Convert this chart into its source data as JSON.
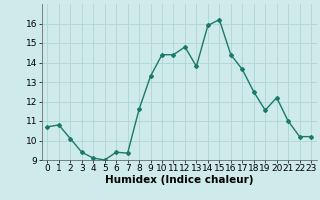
{
  "x": [
    0,
    1,
    2,
    3,
    4,
    5,
    6,
    7,
    8,
    9,
    10,
    11,
    12,
    13,
    14,
    15,
    16,
    17,
    18,
    19,
    20,
    21,
    22,
    23
  ],
  "y": [
    10.7,
    10.8,
    10.1,
    9.4,
    9.1,
    9.0,
    9.4,
    9.35,
    11.6,
    13.3,
    14.4,
    14.4,
    14.8,
    13.8,
    15.9,
    16.2,
    14.4,
    13.65,
    12.5,
    11.55,
    12.2,
    11.0,
    10.2,
    10.2
  ],
  "line_color": "#1a7a6a",
  "marker": "D",
  "marker_size": 2,
  "linewidth": 1.0,
  "xlabel": "Humidex (Indice chaleur)",
  "ylim": [
    9,
    17
  ],
  "xlim": [
    -0.5,
    23.5
  ],
  "yticks": [
    9,
    10,
    11,
    12,
    13,
    14,
    15,
    16
  ],
  "xticks": [
    0,
    1,
    2,
    3,
    4,
    5,
    6,
    7,
    8,
    9,
    10,
    11,
    12,
    13,
    14,
    15,
    16,
    17,
    18,
    19,
    20,
    21,
    22,
    23
  ],
  "bg_color": "#ceeaea",
  "grid_color": "#b0d4d4",
  "xlabel_fontsize": 7.5,
  "tick_fontsize": 6.5
}
